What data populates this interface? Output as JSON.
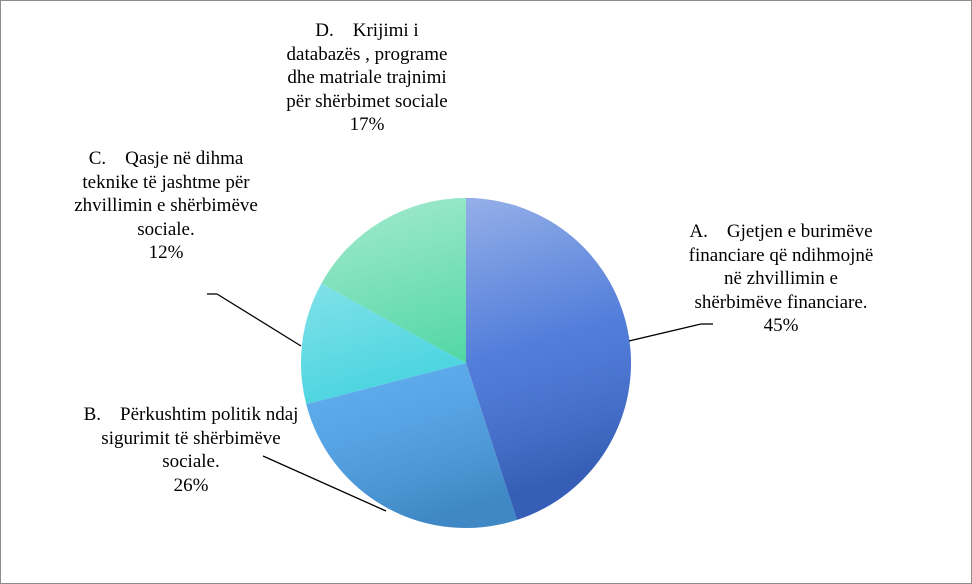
{
  "chart_data": {
    "type": "pie",
    "categories": [
      "A.    Gjetjen e burimëve financiare që ndihmojnë në zhvillimin e shërbimëve financiare.",
      "B.    Përkushtim politik ndaj sigurimit të shërbimëve sociale.",
      "C.    Qasje në dihma teknike të jashtme për zhvillimin e shërbimëve sociale.",
      "D.    Krijimi i databazës , programe dhe matriale trajnimi për shërbimet sociale"
    ],
    "values": [
      45,
      26,
      12,
      17
    ],
    "value_labels": [
      "45%",
      "26%",
      "12%",
      "17%"
    ],
    "colors": [
      "#3f6fd6",
      "#4aa0e8",
      "#38d0dc",
      "#3dd29a"
    ]
  }
}
